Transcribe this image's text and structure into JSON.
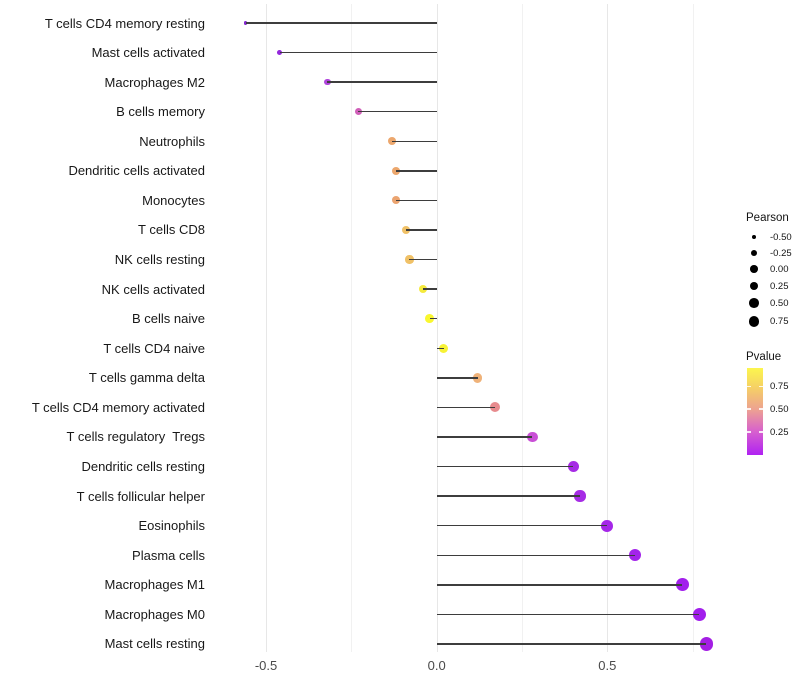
{
  "chart_data": {
    "type": "scatter",
    "variant": "lollipop",
    "title": "",
    "xlabel": "",
    "ylabel": "",
    "grid": "vertical-only",
    "xlim": [
      -0.65,
      0.82
    ],
    "x_axis": {
      "ticks": [
        {
          "label": "-0.5",
          "value": -0.5
        },
        {
          "label": "0.0",
          "value": 0.0
        },
        {
          "label": "0.5",
          "value": 0.5
        }
      ],
      "minor_gridlines": [
        -0.25,
        0.25,
        0.75
      ],
      "baseline_value": 0.0
    },
    "rows": [
      {
        "label": "T cells CD4 memory resting",
        "pearson": -0.56,
        "dot_color": "#8326CE"
      },
      {
        "label": "Mast cells activated",
        "pearson": -0.46,
        "dot_color": "#9428DC"
      },
      {
        "label": "Macrophages M2",
        "pearson": -0.32,
        "dot_color": "#B044DC"
      },
      {
        "label": "B cells memory",
        "pearson": -0.23,
        "dot_color": "#D05FB9"
      },
      {
        "label": "Neutrophils",
        "pearson": -0.13,
        "dot_color": "#ECA76D"
      },
      {
        "label": "Dendritic cells activated",
        "pearson": -0.12,
        "dot_color": "#ECA76D"
      },
      {
        "label": "Monocytes",
        "pearson": -0.12,
        "dot_color": "#EBA470"
      },
      {
        "label": "T cells CD8",
        "pearson": -0.09,
        "dot_color": "#F0C167"
      },
      {
        "label": "NK cells resting",
        "pearson": -0.08,
        "dot_color": "#F0C167"
      },
      {
        "label": "NK cells activated",
        "pearson": -0.04,
        "dot_color": "#F5EA3D"
      },
      {
        "label": "B cells naive",
        "pearson": -0.02,
        "dot_color": "#F9F72F"
      },
      {
        "label": "T cells CD4 naive",
        "pearson": 0.02,
        "dot_color": "#F7F235"
      },
      {
        "label": "T cells gamma delta",
        "pearson": 0.12,
        "dot_color": "#EFB279"
      },
      {
        "label": "T cells CD4 memory activated",
        "pearson": 0.17,
        "dot_color": "#E78B8E"
      },
      {
        "label": "T cells regulatory  Tregs",
        "pearson": 0.28,
        "dot_color": "#C94FD6"
      },
      {
        "label": "Dendritic cells resting",
        "pearson": 0.4,
        "dot_color": "#A62BE5"
      },
      {
        "label": "T cells follicular helper",
        "pearson": 0.42,
        "dot_color": "#A62BE5"
      },
      {
        "label": "Eosinophils",
        "pearson": 0.5,
        "dot_color": "#A527E8"
      },
      {
        "label": "Plasma cells",
        "pearson": 0.58,
        "dot_color": "#A324EA"
      },
      {
        "label": "Macrophages M1",
        "pearson": 0.72,
        "dot_color": "#A21FEC"
      },
      {
        "label": "Macrophages M0",
        "pearson": 0.77,
        "dot_color": "#A21FEC"
      },
      {
        "label": "Mast cells resting",
        "pearson": 0.79,
        "dot_color": "#A41EE4"
      }
    ],
    "legend_size": {
      "title": "Pearson",
      "dot_color": "#000000",
      "items": [
        {
          "label": "-0.50",
          "value": -0.5
        },
        {
          "label": "-0.25",
          "value": -0.25
        },
        {
          "label": "0.00",
          "value": 0.0
        },
        {
          "label": "0.25",
          "value": 0.25
        },
        {
          "label": "0.50",
          "value": 0.5
        },
        {
          "label": "0.75",
          "value": 0.75
        }
      ]
    },
    "legend_color": {
      "title": "Pvalue",
      "ticks": [
        {
          "label": "0.75",
          "value": 0.75
        },
        {
          "label": "0.50",
          "value": 0.5
        },
        {
          "label": "0.25",
          "value": 0.25
        }
      ],
      "bar_range_top": 0.95,
      "bar_range_bottom": 0.0,
      "gradient_stops": [
        {
          "color": "#FCF64E",
          "pos": 0
        },
        {
          "color": "#F5CF66",
          "pos": 23
        },
        {
          "color": "#EDA192",
          "pos": 48
        },
        {
          "color": "#D760CE",
          "pos": 73
        },
        {
          "color": "#B022F2",
          "pos": 100
        }
      ]
    }
  }
}
